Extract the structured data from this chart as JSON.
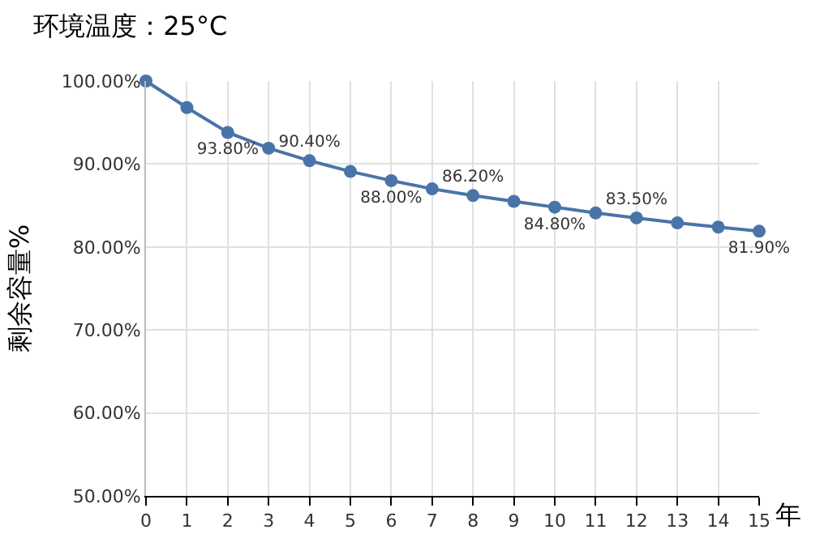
{
  "chart_data": {
    "type": "line",
    "title": "环境温度：25°C",
    "xlabel": "年",
    "ylabel": "剩余容量%",
    "x": [
      0,
      1,
      2,
      3,
      4,
      5,
      6,
      7,
      8,
      9,
      10,
      11,
      12,
      13,
      14,
      15
    ],
    "series": [
      {
        "color": "#4a74a8",
        "values": [
          100,
          96.8,
          93.8,
          91.9,
          90.4,
          89.1,
          88.0,
          87.0,
          86.2,
          85.5,
          84.8,
          84.1,
          83.5,
          82.9,
          82.4,
          81.9
        ],
        "value_labels": [
          null,
          null,
          "93.80%",
          null,
          "90.40%",
          null,
          "88.00%",
          null,
          "86.20%",
          null,
          "84.80%",
          null,
          "83.50%",
          null,
          null,
          "81.90%"
        ]
      }
    ],
    "xlim": [
      0,
      15
    ],
    "xticks": [
      0,
      1,
      2,
      3,
      4,
      5,
      6,
      7,
      8,
      9,
      10,
      11,
      12,
      13,
      14,
      15
    ],
    "ylim": [
      50,
      100
    ],
    "yticks": [
      {
        "value": 50,
        "label": "50.00%"
      },
      {
        "value": 60,
        "label": "60.00%"
      },
      {
        "value": 70,
        "label": "70.00%"
      },
      {
        "value": 80,
        "label": "80.00%"
      },
      {
        "value": 90,
        "label": "90.00%"
      },
      {
        "value": 100,
        "label": "100.00%"
      }
    ],
    "grid": true,
    "marker": "circle",
    "line_style": "solid",
    "legend": false
  }
}
